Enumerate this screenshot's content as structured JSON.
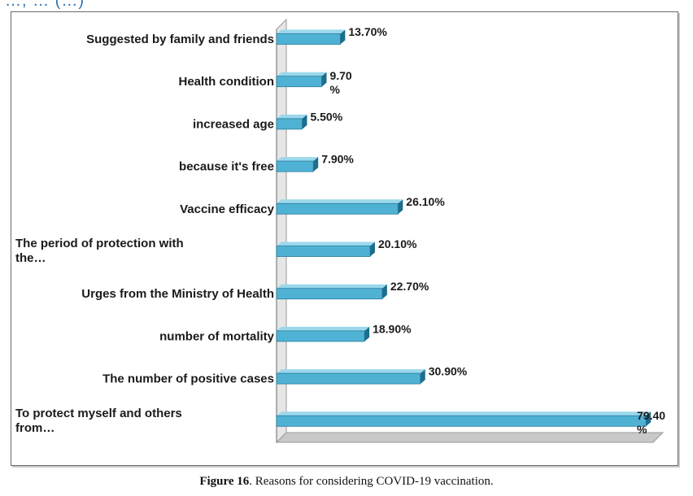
{
  "figure": {
    "caption_label": "Figure 16",
    "caption_text": ". Reasons for considering COVID-19 vaccination."
  },
  "colors": {
    "bar_face": "#4fb2d4",
    "bar_top": "#9bd8ec",
    "bar_side": "#1d6d8c",
    "wall": "#e6e6e6",
    "floor": "#c8c8c8",
    "frame": "#6a6a6a"
  },
  "chart_data": {
    "type": "bar",
    "orientation": "horizontal",
    "style": "3d",
    "title": "",
    "xlabel": "",
    "ylabel": "",
    "grid": false,
    "xlim": [
      0,
      80
    ],
    "categories": [
      [
        "Suggested by family and friends"
      ],
      [
        "Health condition"
      ],
      [
        "increased age"
      ],
      [
        "because it's free"
      ],
      [
        "Vaccine efficacy"
      ],
      [
        "The period of protection with",
        "the…"
      ],
      [
        "Urges from the Ministry of Health"
      ],
      [
        "number of mortality"
      ],
      [
        "The number of positive cases"
      ],
      [
        "To protect myself and others",
        "from…"
      ]
    ],
    "values": [
      13.7,
      9.7,
      5.5,
      7.9,
      26.1,
      20.1,
      22.7,
      18.9,
      30.9,
      79.4
    ],
    "value_labels": [
      [
        "13.70%"
      ],
      [
        "9.70",
        "%"
      ],
      [
        "5.50%"
      ],
      [
        "7.90%"
      ],
      [
        "26.10%"
      ],
      [
        "20.10%"
      ],
      [
        "22.70%"
      ],
      [
        "18.90%"
      ],
      [
        "30.90%"
      ],
      [
        "79.40",
        "%"
      ]
    ]
  }
}
